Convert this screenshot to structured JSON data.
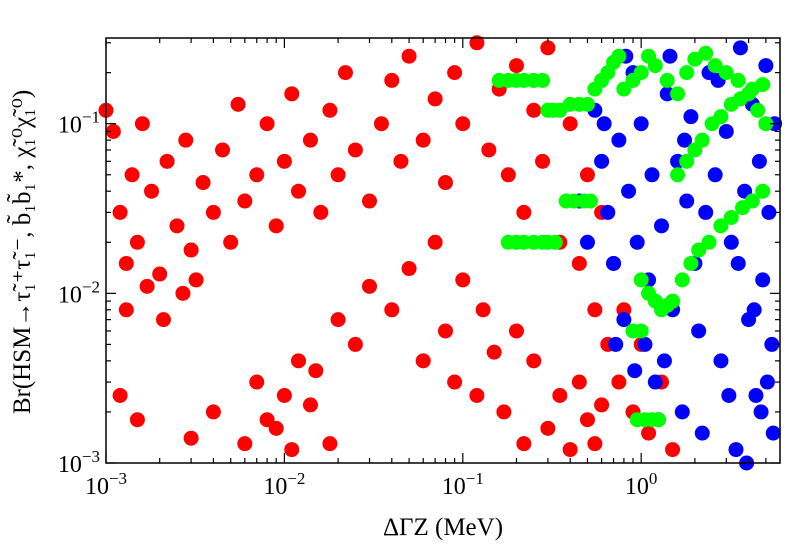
{
  "chart_data": {
    "type": "scatter",
    "title": "",
    "xlabel": "ΔΓZ (MeV)",
    "ylabel": "Br(HSM→τ̃₁⁺τ̃₁⁻, b̃₁b̃₁*, χ̃₁⁰χ̃₁⁰)",
    "x_scale": "log",
    "y_scale": "log",
    "xlim": [
      0.001,
      6.0
    ],
    "ylim": [
      0.001,
      0.32
    ],
    "x_ticks": [
      {
        "value": 0.001,
        "base": "10",
        "exponent": "−3"
      },
      {
        "value": 0.01,
        "base": "10",
        "exponent": "−2"
      },
      {
        "value": 0.1,
        "base": "10",
        "exponent": "−1"
      },
      {
        "value": 1,
        "base": "10",
        "exponent": "0"
      }
    ],
    "y_ticks": [
      {
        "value": 0.001,
        "base": "10",
        "exponent": "−3"
      },
      {
        "value": 0.01,
        "base": "10",
        "exponent": "−2"
      },
      {
        "value": 0.1,
        "base": "10",
        "exponent": "−1"
      }
    ],
    "legend": "none",
    "grid": false,
    "series": [
      {
        "name": "red",
        "color": "#ff0000",
        "points": [
          [
            0.001,
            0.12
          ],
          [
            0.0011,
            0.09
          ],
          [
            0.0012,
            0.03
          ],
          [
            0.0013,
            0.015
          ],
          [
            0.0014,
            0.05
          ],
          [
            0.0015,
            0.02
          ],
          [
            0.0016,
            0.1
          ],
          [
            0.0018,
            0.04
          ],
          [
            0.002,
            0.013
          ],
          [
            0.0022,
            0.06
          ],
          [
            0.0025,
            0.025
          ],
          [
            0.0028,
            0.08
          ],
          [
            0.003,
            0.018
          ],
          [
            0.0032,
            0.012
          ],
          [
            0.0035,
            0.045
          ],
          [
            0.004,
            0.03
          ],
          [
            0.0045,
            0.07
          ],
          [
            0.005,
            0.02
          ],
          [
            0.0055,
            0.13
          ],
          [
            0.006,
            0.035
          ],
          [
            0.007,
            0.05
          ],
          [
            0.008,
            0.1
          ],
          [
            0.009,
            0.025
          ],
          [
            0.01,
            0.06
          ],
          [
            0.011,
            0.15
          ],
          [
            0.012,
            0.04
          ],
          [
            0.014,
            0.08
          ],
          [
            0.016,
            0.03
          ],
          [
            0.018,
            0.12
          ],
          [
            0.02,
            0.05
          ],
          [
            0.022,
            0.2
          ],
          [
            0.025,
            0.07
          ],
          [
            0.03,
            0.035
          ],
          [
            0.035,
            0.1
          ],
          [
            0.04,
            0.18
          ],
          [
            0.045,
            0.06
          ],
          [
            0.05,
            0.25
          ],
          [
            0.06,
            0.08
          ],
          [
            0.07,
            0.14
          ],
          [
            0.08,
            0.045
          ],
          [
            0.09,
            0.2
          ],
          [
            0.1,
            0.1
          ],
          [
            0.12,
            0.3
          ],
          [
            0.14,
            0.07
          ],
          [
            0.16,
            0.16
          ],
          [
            0.18,
            0.05
          ],
          [
            0.2,
            0.22
          ],
          [
            0.22,
            0.03
          ],
          [
            0.25,
            0.12
          ],
          [
            0.28,
            0.06
          ],
          [
            0.3,
            0.28
          ],
          [
            0.35,
            0.02
          ],
          [
            0.4,
            0.1
          ],
          [
            0.45,
            0.015
          ],
          [
            0.5,
            0.05
          ],
          [
            0.55,
            0.008
          ],
          [
            0.6,
            0.03
          ],
          [
            0.65,
            0.005
          ],
          [
            0.7,
            0.015
          ],
          [
            0.75,
            0.003
          ],
          [
            0.8,
            0.008
          ],
          [
            0.9,
            0.002
          ],
          [
            1.0,
            0.005
          ],
          [
            1.1,
            0.0015
          ],
          [
            1.3,
            0.003
          ],
          [
            1.5,
            0.0012
          ],
          [
            0.0012,
            0.0025
          ],
          [
            0.0015,
            0.0018
          ],
          [
            0.003,
            0.0014
          ],
          [
            0.004,
            0.002
          ],
          [
            0.006,
            0.0013
          ],
          [
            0.008,
            0.0018
          ],
          [
            0.01,
            0.0025
          ],
          [
            0.012,
            0.004
          ],
          [
            0.015,
            0.0035
          ],
          [
            0.02,
            0.007
          ],
          [
            0.025,
            0.005
          ],
          [
            0.03,
            0.011
          ],
          [
            0.04,
            0.008
          ],
          [
            0.05,
            0.014
          ],
          [
            0.06,
            0.004
          ],
          [
            0.07,
            0.02
          ],
          [
            0.08,
            0.006
          ],
          [
            0.09,
            0.003
          ],
          [
            0.1,
            0.012
          ],
          [
            0.12,
            0.0025
          ],
          [
            0.13,
            0.008
          ],
          [
            0.15,
            0.0045
          ],
          [
            0.17,
            0.002
          ],
          [
            0.2,
            0.006
          ],
          [
            0.22,
            0.0013
          ],
          [
            0.25,
            0.004
          ],
          [
            0.3,
            0.0016
          ],
          [
            0.35,
            0.0025
          ],
          [
            0.4,
            0.0012
          ],
          [
            0.45,
            0.003
          ],
          [
            0.5,
            0.0018
          ],
          [
            0.55,
            0.0013
          ],
          [
            0.6,
            0.0022
          ],
          [
            0.007,
            0.003
          ],
          [
            0.009,
            0.0016
          ],
          [
            0.011,
            0.0012
          ],
          [
            0.014,
            0.0022
          ],
          [
            0.018,
            0.0013
          ],
          [
            0.0013,
            0.008
          ],
          [
            0.0017,
            0.011
          ],
          [
            0.0021,
            0.007
          ],
          [
            0.0027,
            0.01
          ]
        ]
      },
      {
        "name": "blue",
        "color": "#0000ff",
        "points": [
          [
            0.55,
            0.12
          ],
          [
            0.6,
            0.06
          ],
          [
            0.65,
            0.03
          ],
          [
            0.7,
            0.015
          ],
          [
            0.75,
            0.08
          ],
          [
            0.8,
            0.007
          ],
          [
            0.85,
            0.04
          ],
          [
            0.9,
            0.2
          ],
          [
            0.95,
            0.02
          ],
          [
            1.0,
            0.1
          ],
          [
            1.05,
            0.005
          ],
          [
            1.1,
            0.012
          ],
          [
            1.15,
            0.05
          ],
          [
            1.2,
            0.003
          ],
          [
            1.3,
            0.025
          ],
          [
            1.4,
            0.15
          ],
          [
            1.5,
            0.008
          ],
          [
            1.6,
            0.06
          ],
          [
            1.7,
            0.002
          ],
          [
            1.8,
            0.035
          ],
          [
            1.9,
            0.11
          ],
          [
            2.0,
            0.015
          ],
          [
            2.2,
            0.0015
          ],
          [
            2.4,
            0.2
          ],
          [
            2.6,
            0.05
          ],
          [
            2.8,
            0.004
          ],
          [
            3.0,
            0.09
          ],
          [
            3.2,
            0.02
          ],
          [
            3.4,
            0.0012
          ],
          [
            3.6,
            0.28
          ],
          [
            3.8,
            0.04
          ],
          [
            4.0,
            0.007
          ],
          [
            4.2,
            0.13
          ],
          [
            4.4,
            0.0025
          ],
          [
            4.6,
            0.06
          ],
          [
            4.8,
            0.012
          ],
          [
            5.0,
            0.22
          ],
          [
            5.2,
            0.03
          ],
          [
            5.4,
            0.005
          ],
          [
            5.6,
            0.1
          ],
          [
            0.45,
            0.035
          ],
          [
            0.5,
            0.02
          ],
          [
            0.62,
            0.1
          ],
          [
            0.72,
            0.005
          ],
          [
            0.82,
            0.25
          ],
          [
            0.92,
            0.0035
          ],
          [
            1.25,
            0.0018
          ],
          [
            1.35,
            0.004
          ],
          [
            1.45,
            0.25
          ],
          [
            1.75,
            0.08
          ],
          [
            2.1,
            0.006
          ],
          [
            2.3,
            0.03
          ],
          [
            2.7,
            0.18
          ],
          [
            3.1,
            0.0025
          ],
          [
            3.5,
            0.015
          ],
          [
            3.9,
            0.001
          ],
          [
            4.3,
            0.008
          ],
          [
            4.7,
            0.002
          ],
          [
            5.1,
            0.003
          ],
          [
            5.5,
            0.0015
          ]
        ]
      },
      {
        "name": "green",
        "color": "#00ff00",
        "points": [
          [
            0.16,
            0.18
          ],
          [
            0.18,
            0.18
          ],
          [
            0.2,
            0.18
          ],
          [
            0.22,
            0.18
          ],
          [
            0.25,
            0.18
          ],
          [
            0.28,
            0.18
          ],
          [
            0.3,
            0.12
          ],
          [
            0.32,
            0.12
          ],
          [
            0.35,
            0.12
          ],
          [
            0.18,
            0.02
          ],
          [
            0.2,
            0.02
          ],
          [
            0.22,
            0.02
          ],
          [
            0.25,
            0.02
          ],
          [
            0.28,
            0.02
          ],
          [
            0.3,
            0.02
          ],
          [
            0.33,
            0.02
          ],
          [
            0.38,
            0.035
          ],
          [
            0.42,
            0.035
          ],
          [
            0.48,
            0.035
          ],
          [
            0.52,
            0.035
          ],
          [
            0.4,
            0.13
          ],
          [
            0.45,
            0.13
          ],
          [
            0.5,
            0.13
          ],
          [
            0.55,
            0.16
          ],
          [
            0.6,
            0.18
          ],
          [
            0.65,
            0.2
          ],
          [
            0.7,
            0.23
          ],
          [
            0.75,
            0.25
          ],
          [
            0.8,
            0.16
          ],
          [
            0.9,
            0.18
          ],
          [
            1.0,
            0.2
          ],
          [
            1.1,
            0.25
          ],
          [
            1.2,
            0.22
          ],
          [
            1.4,
            0.18
          ],
          [
            1.6,
            0.15
          ],
          [
            1.8,
            0.2
          ],
          [
            2.0,
            0.24
          ],
          [
            2.3,
            0.26
          ],
          [
            2.6,
            0.22
          ],
          [
            3.0,
            0.2
          ],
          [
            3.5,
            0.18
          ],
          [
            4.0,
            0.15
          ],
          [
            4.5,
            0.12
          ],
          [
            5.0,
            0.1
          ],
          [
            1.0,
            0.012
          ],
          [
            1.1,
            0.01
          ],
          [
            1.2,
            0.009
          ],
          [
            1.3,
            0.008
          ],
          [
            1.4,
            0.0085
          ],
          [
            1.5,
            0.009
          ],
          [
            1.7,
            0.012
          ],
          [
            1.9,
            0.015
          ],
          [
            2.1,
            0.018
          ],
          [
            2.4,
            0.02
          ],
          [
            2.8,
            0.025
          ],
          [
            3.2,
            0.028
          ],
          [
            3.7,
            0.032
          ],
          [
            4.2,
            0.035
          ],
          [
            4.8,
            0.04
          ],
          [
            0.9,
            0.006
          ],
          [
            1.0,
            0.006
          ],
          [
            0.95,
            0.0018
          ],
          [
            1.05,
            0.0018
          ],
          [
            1.15,
            0.0018
          ],
          [
            1.25,
            0.0018
          ],
          [
            1.6,
            0.05
          ],
          [
            1.8,
            0.06
          ],
          [
            2.0,
            0.07
          ],
          [
            2.2,
            0.08
          ],
          [
            2.5,
            0.1
          ],
          [
            2.8,
            0.11
          ],
          [
            3.2,
            0.13
          ],
          [
            3.6,
            0.14
          ],
          [
            4.2,
            0.16
          ],
          [
            4.8,
            0.17
          ]
        ]
      }
    ]
  }
}
